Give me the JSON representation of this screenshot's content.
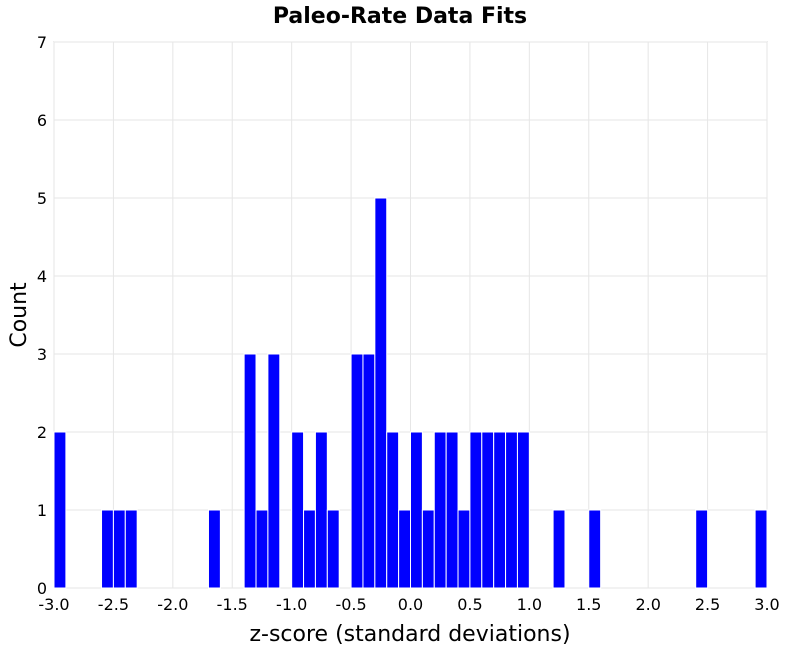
{
  "chart_data": {
    "type": "bar",
    "title": "Paleo-Rate Data Fits",
    "xlabel": "z-score (standard deviations)",
    "ylabel": "Count",
    "xlim": [
      -3.0,
      3.0
    ],
    "ylim": [
      0,
      7
    ],
    "bin_width": 0.1,
    "x_ticks": [
      "-3.0",
      "-2.5",
      "-2.0",
      "-1.5",
      "-1.0",
      "-0.5",
      "0.0",
      "0.5",
      "1.0",
      "1.5",
      "2.0",
      "2.5",
      "3.0"
    ],
    "y_ticks": [
      "0",
      "1",
      "2",
      "3",
      "4",
      "5",
      "6",
      "7"
    ],
    "grid": true,
    "bar_color": "#0000ff",
    "bins": [
      {
        "x": -3.0,
        "count": 2
      },
      {
        "x": -2.6,
        "count": 1
      },
      {
        "x": -2.5,
        "count": 1
      },
      {
        "x": -2.4,
        "count": 1
      },
      {
        "x": -1.7,
        "count": 1
      },
      {
        "x": -1.4,
        "count": 3
      },
      {
        "x": -1.3,
        "count": 1
      },
      {
        "x": -1.2,
        "count": 3
      },
      {
        "x": -1.0,
        "count": 2
      },
      {
        "x": -0.9,
        "count": 1
      },
      {
        "x": -0.8,
        "count": 2
      },
      {
        "x": -0.7,
        "count": 1
      },
      {
        "x": -0.5,
        "count": 3
      },
      {
        "x": -0.4,
        "count": 3
      },
      {
        "x": -0.3,
        "count": 5
      },
      {
        "x": -0.2,
        "count": 2
      },
      {
        "x": -0.1,
        "count": 1
      },
      {
        "x": 0.0,
        "count": 2
      },
      {
        "x": 0.1,
        "count": 1
      },
      {
        "x": 0.2,
        "count": 2
      },
      {
        "x": 0.3,
        "count": 2
      },
      {
        "x": 0.4,
        "count": 1
      },
      {
        "x": 0.5,
        "count": 2
      },
      {
        "x": 0.6,
        "count": 2
      },
      {
        "x": 0.7,
        "count": 2
      },
      {
        "x": 0.8,
        "count": 2
      },
      {
        "x": 0.9,
        "count": 2
      },
      {
        "x": 1.2,
        "count": 1
      },
      {
        "x": 1.5,
        "count": 1
      },
      {
        "x": 2.4,
        "count": 1
      },
      {
        "x": 2.9,
        "count": 1
      }
    ]
  }
}
